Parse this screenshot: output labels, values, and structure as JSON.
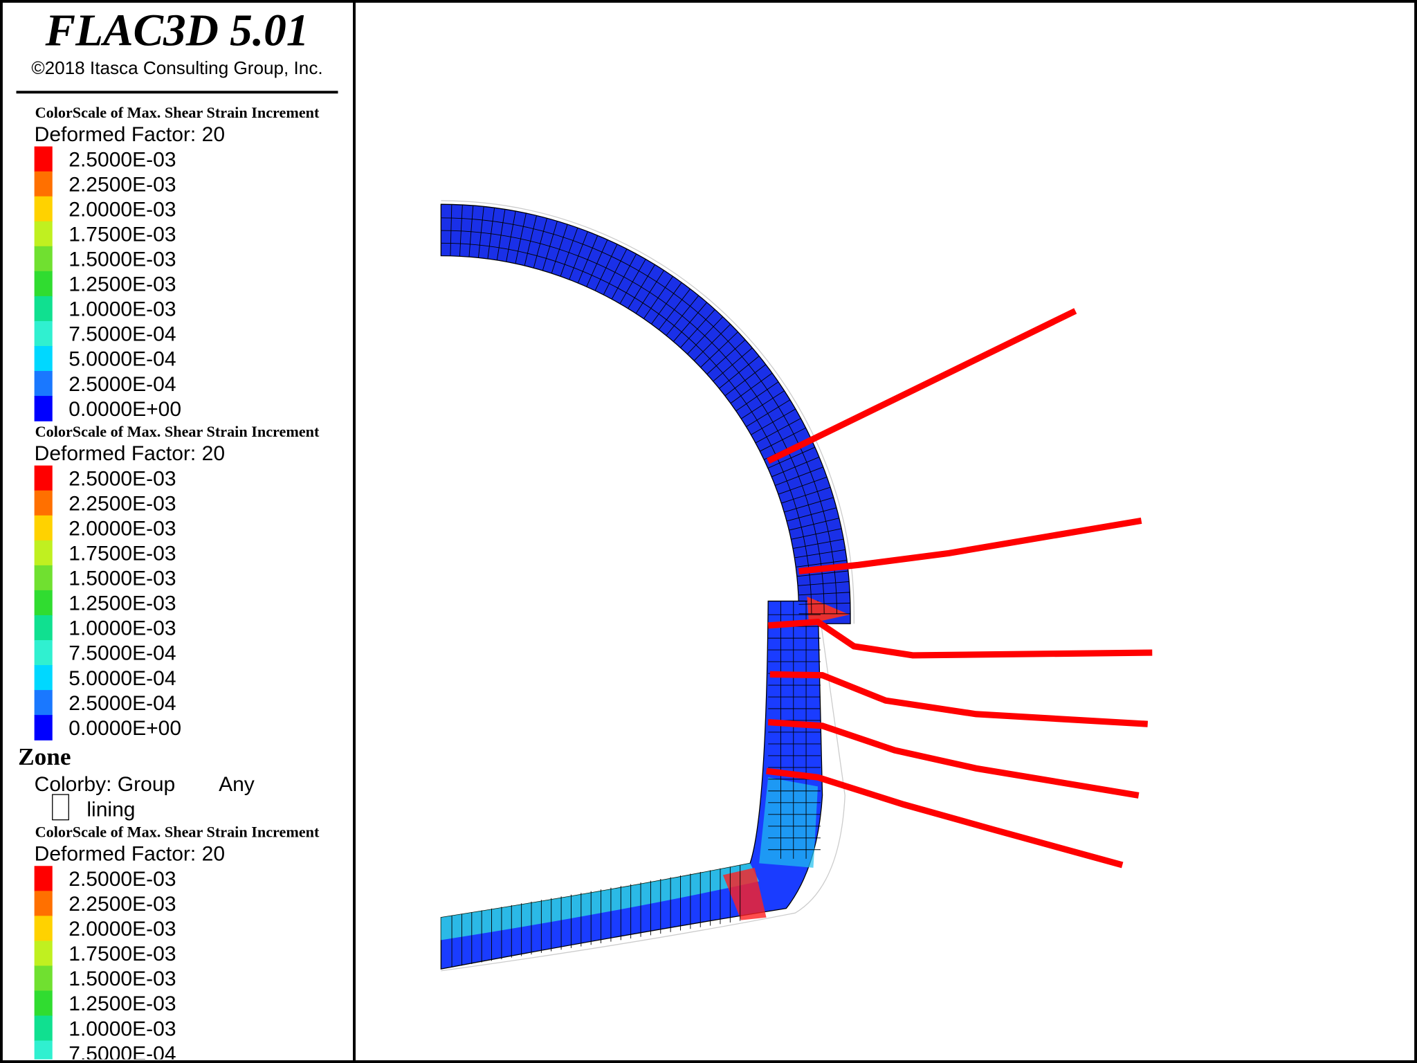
{
  "header": {
    "title": "FLAC3D 5.01",
    "copyright": "©2018 Itasca Consulting Group, Inc."
  },
  "legends": [
    {
      "title": "ColorScale of Max. Shear Strain Increment",
      "deformed": "Deformed Factor: 20",
      "items": [
        {
          "label": "2.5000E-03",
          "color": "#ff0000"
        },
        {
          "label": "2.2500E-03",
          "color": "#ff7000"
        },
        {
          "label": "2.0000E-03",
          "color": "#ffd200"
        },
        {
          "label": "1.7500E-03",
          "color": "#c0f020"
        },
        {
          "label": "1.5000E-03",
          "color": "#70e030"
        },
        {
          "label": "1.2500E-03",
          "color": "#30dc30"
        },
        {
          "label": "1.0000E-03",
          "color": "#10e090"
        },
        {
          "label": "7.5000E-04",
          "color": "#30f0d0"
        },
        {
          "label": "5.0000E-04",
          "color": "#00d8ff"
        },
        {
          "label": "2.5000E-04",
          "color": "#1a78ff"
        },
        {
          "label": "0.0000E+00",
          "color": "#0000ff"
        }
      ]
    },
    {
      "title": "ColorScale of Max. Shear Strain Increment",
      "deformed": "Deformed Factor: 20",
      "items": [
        {
          "label": "2.5000E-03",
          "color": "#ff0000"
        },
        {
          "label": "2.2500E-03",
          "color": "#ff7000"
        },
        {
          "label": "2.0000E-03",
          "color": "#ffd200"
        },
        {
          "label": "1.7500E-03",
          "color": "#c0f020"
        },
        {
          "label": "1.5000E-03",
          "color": "#70e030"
        },
        {
          "label": "1.2500E-03",
          "color": "#30dc30"
        },
        {
          "label": "1.0000E-03",
          "color": "#10e090"
        },
        {
          "label": "7.5000E-04",
          "color": "#30f0d0"
        },
        {
          "label": "5.0000E-04",
          "color": "#00d8ff"
        },
        {
          "label": "2.5000E-04",
          "color": "#1a78ff"
        },
        {
          "label": "0.0000E+00",
          "color": "#0000ff"
        }
      ]
    },
    {
      "title": "ColorScale of Max. Shear Strain Increment",
      "deformed": "Deformed Factor: 20",
      "items": [
        {
          "label": "2.5000E-03",
          "color": "#ff0000"
        },
        {
          "label": "2.2500E-03",
          "color": "#ff7000"
        },
        {
          "label": "2.0000E-03",
          "color": "#ffd200"
        },
        {
          "label": "1.7500E-03",
          "color": "#c0f020"
        },
        {
          "label": "1.5000E-03",
          "color": "#70e030"
        },
        {
          "label": "1.2500E-03",
          "color": "#30dc30"
        },
        {
          "label": "1.0000E-03",
          "color": "#10e090"
        },
        {
          "label": "7.5000E-04",
          "color": "#30f0d0"
        }
      ]
    }
  ],
  "zone": {
    "title": "Zone",
    "colorby": "Colorby: Group",
    "any": "Any",
    "group": "lining"
  }
}
